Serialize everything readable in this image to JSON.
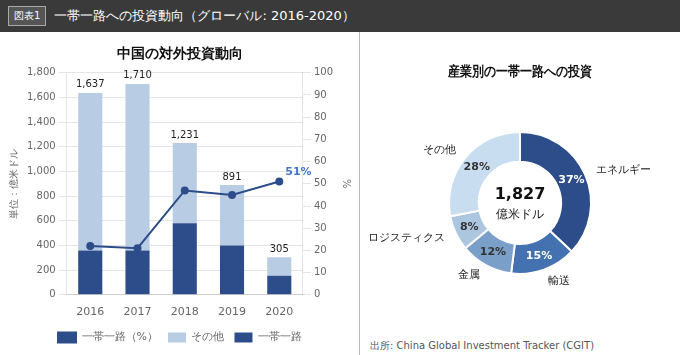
{
  "title": "一帯一路への投資動向（グローバル: 2016-2020）",
  "annotations": [
    "図表1",
    "出所: China Global Investment Tracker (CGIT)"
  ],
  "chart_data": [
    {
      "type": "bar",
      "title": "中国の対外投資動向",
      "ylabel": "単位：億米ドル",
      "y2label": "%",
      "categories": [
        "2016",
        "2017",
        "2018",
        "2019",
        "2020"
      ],
      "stacked": true,
      "grid": true,
      "legend": "bottom",
      "series": [
        {
          "name": "一帯一路（%）",
          "type": "line",
          "axis": "y2",
          "color": "#2c4d8a",
          "marker": "circle",
          "values": [
            22,
            21,
            47,
            45,
            51
          ]
        },
        {
          "name": "その他",
          "type": "bar",
          "color": "#b8cce4",
          "values": [
            1277,
            1350,
            651,
            491,
            150
          ]
        },
        {
          "name": "一帯一路",
          "type": "bar",
          "color": "#2c4d8a",
          "values": [
            360,
            360,
            580,
            400,
            155
          ]
        }
      ],
      "totals": [
        1637,
        1710,
        1231,
        891,
        305
      ],
      "total_labels": [
        "1,637",
        "1,710",
        "1,231",
        "891",
        "305"
      ],
      "ylim": [
        0,
        1800
      ],
      "yticks": [
        0,
        200,
        400,
        600,
        800,
        {
          "value": 1000,
          "label": "1,000"
        },
        {
          "value": 1200,
          "label": "1,200"
        },
        {
          "value": 1400,
          "label": "1,400"
        },
        {
          "value": 1600,
          "label": "1,600"
        },
        {
          "value": 1800,
          "label": "1,800"
        }
      ],
      "y2lim": [
        0,
        100
      ],
      "y2ticks": [
        0,
        10,
        20,
        30,
        40,
        50,
        60,
        70,
        80,
        90,
        100
      ],
      "annotations": [
        {
          "text": "51%",
          "x": "2020",
          "y": 51,
          "axis": "y2",
          "color": "#4477cc"
        }
      ]
    },
    {
      "type": "doughnut",
      "title": "産業別の一帯一路への投資",
      "categories": [
        "エネルギー",
        "輸送",
        "金属",
        "ロジスティクス",
        "その他"
      ],
      "values": [
        37,
        15,
        12,
        8,
        28
      ],
      "value_labels": [
        "37%",
        "15%",
        "12%",
        "8%",
        "28%"
      ],
      "colors": [
        "#2c4d8a",
        "#4472b0",
        "#7a9fc9",
        "#adc6e0",
        "#c9ddf0"
      ],
      "data_labels": true,
      "annotations": [
        "1,827",
        "億米ドル"
      ]
    }
  ]
}
